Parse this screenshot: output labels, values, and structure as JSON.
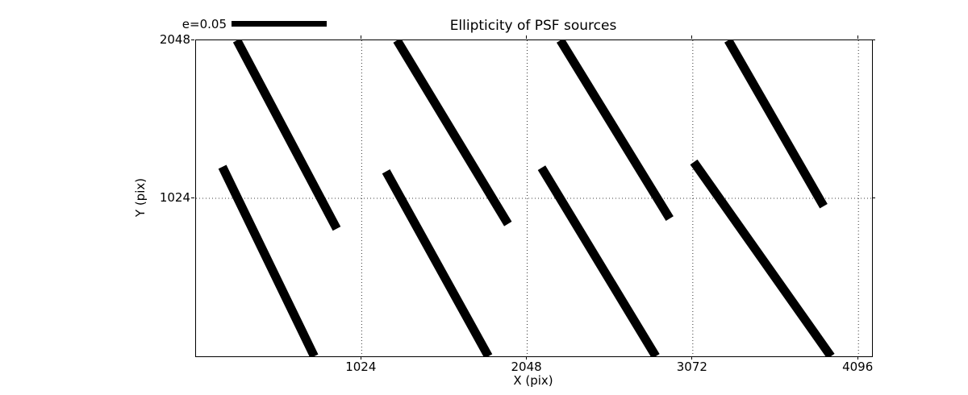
{
  "chart_data": {
    "type": "line",
    "subtype": "ellipticity-whisker-field",
    "title": "Ellipticity of PSF sources",
    "xlabel": "X (pix)",
    "ylabel": "Y (pix)",
    "xlim": [
      0,
      4180
    ],
    "ylim": [
      0,
      2048
    ],
    "xticks": [
      1024,
      2048,
      3072,
      4096
    ],
    "yticks": [
      1024,
      2048
    ],
    "grid": {
      "style": "dotted",
      "x_values": [
        1024,
        2048,
        3072,
        4096
      ],
      "y_values": [
        1024
      ]
    },
    "legend": {
      "label": "e=0.05",
      "position": "top-left-above-axes",
      "bar_length_data_units": 588
    },
    "line_color": "#000000",
    "background": "#ffffff",
    "segments": [
      {
        "x1": 253,
        "y1": 2048,
        "x2": 870,
        "y2": 827,
        "clipped": "top"
      },
      {
        "x1": 163,
        "y1": 1228,
        "x2": 731,
        "y2": 0,
        "clipped": "bottom"
      },
      {
        "x1": 1243,
        "y1": 2048,
        "x2": 1929,
        "y2": 858,
        "clipped": "top"
      },
      {
        "x1": 1175,
        "y1": 1198,
        "x2": 1808,
        "y2": 0,
        "clipped": "bottom"
      },
      {
        "x1": 2253,
        "y1": 2048,
        "x2": 2929,
        "y2": 893,
        "clipped": "top"
      },
      {
        "x1": 2137,
        "y1": 1222,
        "x2": 2843,
        "y2": 0,
        "clipped": "bottom"
      },
      {
        "x1": 3291,
        "y1": 2048,
        "x2": 3881,
        "y2": 973,
        "clipped": "top"
      },
      {
        "x1": 3078,
        "y1": 1259,
        "x2": 3926,
        "y2": 0,
        "clipped": "bottom"
      }
    ]
  }
}
